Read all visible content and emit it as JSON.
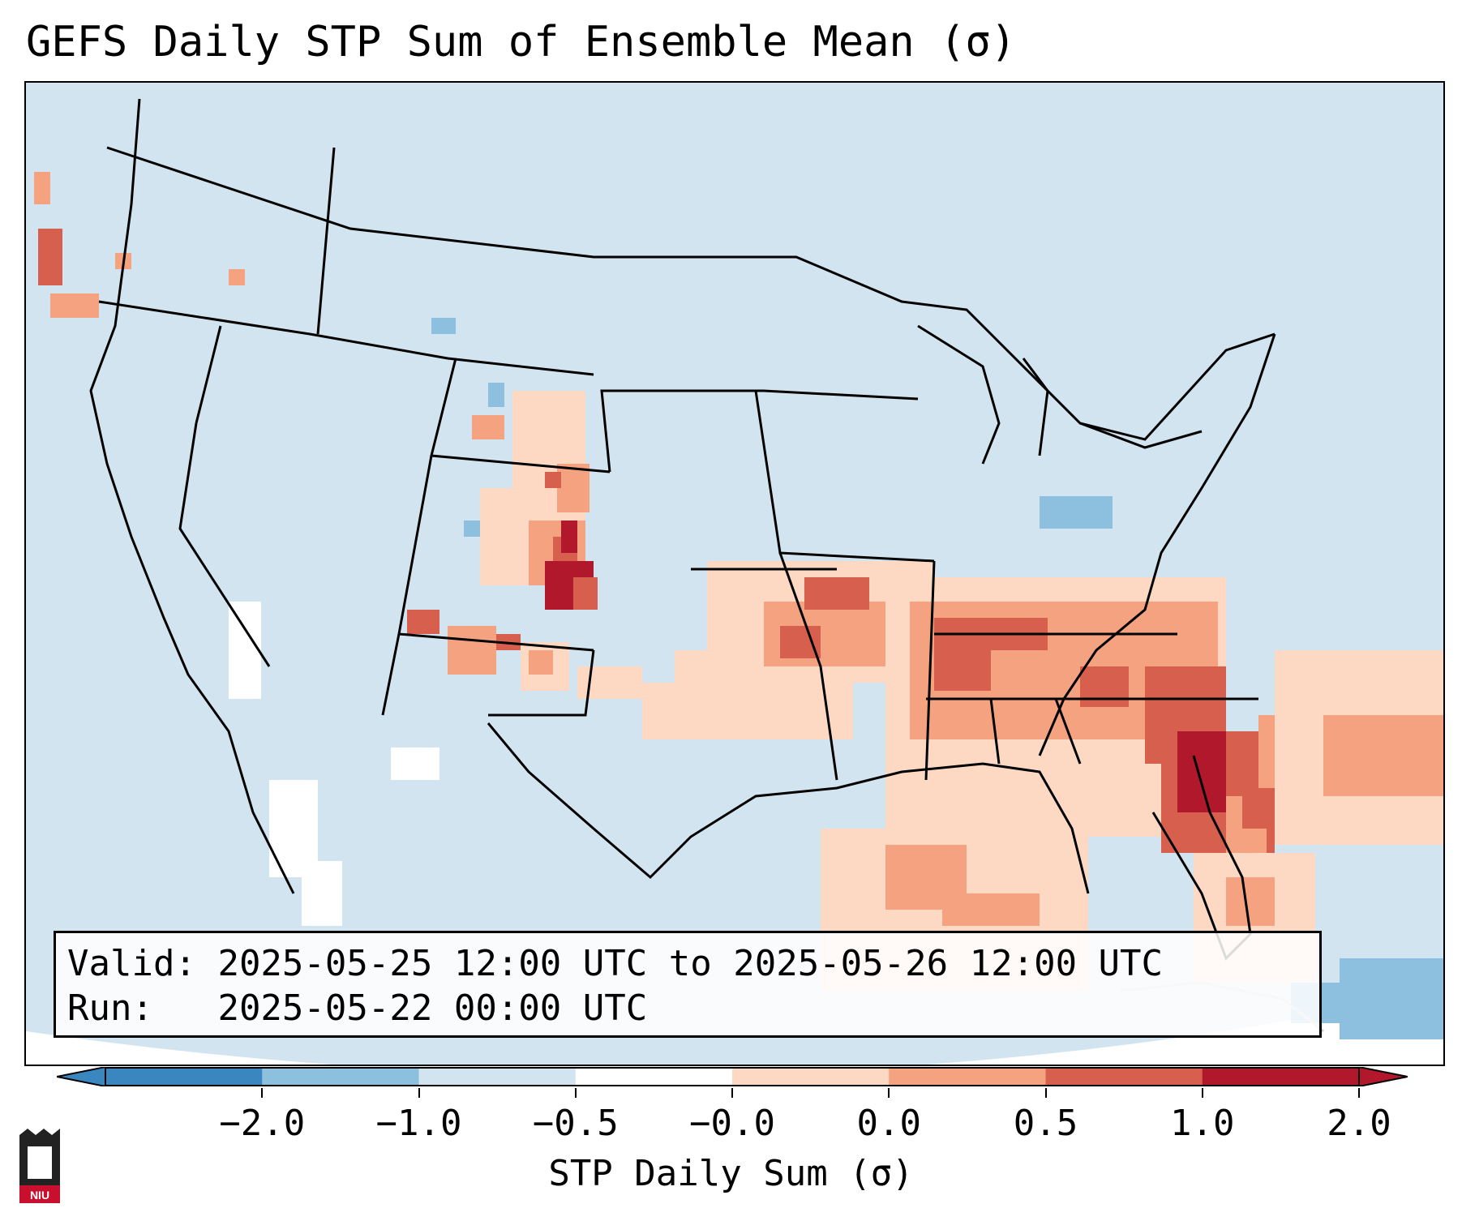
{
  "title": "GEFS Daily STP Sum of Ensemble Mean (σ)",
  "info": {
    "valid_label": "Valid:",
    "valid_value": "2025-05-25 12:00 UTC to 2025-05-26 12:00 UTC",
    "run_label": "Run:",
    "run_value": "2025-05-22 00:00 UTC"
  },
  "colorbar": {
    "label": "STP Daily Sum (σ)",
    "ticks": [
      "−2.0",
      "−1.0",
      "−0.5",
      "−0.0",
      "0.0",
      "0.5",
      "1.0",
      "2.0"
    ],
    "colors": [
      "#3a87c0",
      "#8cc0de",
      "#d1e4f0",
      "#ffffff",
      "#fdd9c4",
      "#f4a280",
      "#d6604d",
      "#b2182b"
    ]
  },
  "colors": {
    "background_field": "#d1e4f0",
    "outside_domain": "#ffffff",
    "weak_negative": "#8cc0de",
    "weak_positive": "#fdd9c4",
    "moderate_positive": "#f4a280",
    "strong_positive": "#d6604d",
    "max_positive": "#b2182b"
  },
  "logo": {
    "text": "NIU"
  }
}
